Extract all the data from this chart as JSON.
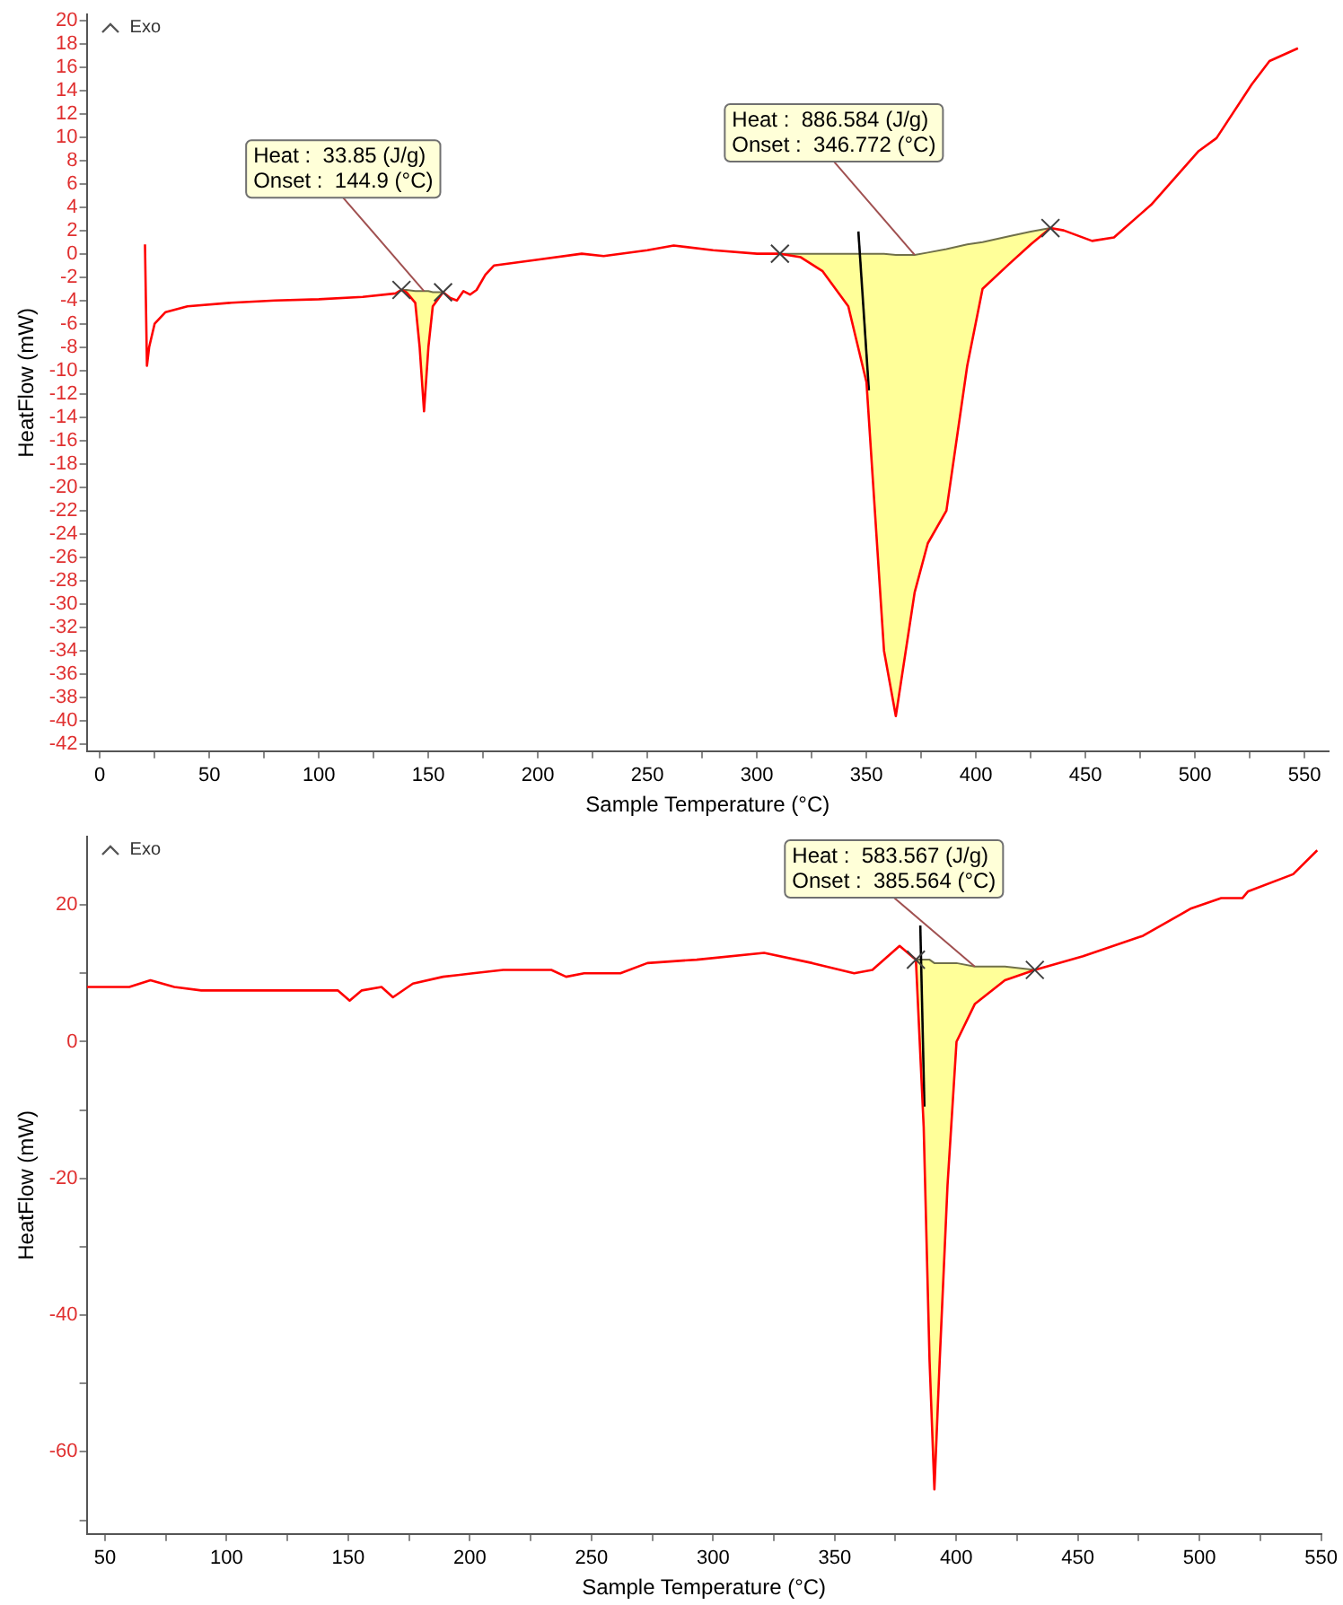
{
  "chart_data": [
    {
      "type": "line",
      "xlabel": "Sample Temperature (°C)",
      "ylabel": "HeatFlow (mW)",
      "xlim": [
        -6,
        561
      ],
      "ylim": [
        -42.6,
        20.5
      ],
      "xticks": [
        0,
        {
          "value": 25,
          "label": null
        },
        50,
        {
          "value": 75,
          "label": null
        },
        100,
        {
          "value": 125,
          "label": null
        },
        150,
        {
          "value": 175,
          "label": null
        },
        200,
        {
          "value": 225,
          "label": null
        },
        250,
        {
          "value": 275,
          "label": null
        },
        300,
        {
          "value": 325,
          "label": null
        },
        350,
        {
          "value": 375,
          "label": null
        },
        400,
        {
          "value": 425,
          "label": null
        },
        450,
        {
          "value": 475,
          "label": null
        },
        500,
        {
          "value": 525,
          "label": null
        },
        550
      ],
      "yticks": [
        -42,
        -40,
        -38,
        -36,
        -34,
        -32,
        -30,
        -28,
        -26,
        -24,
        -22,
        -20,
        -18,
        -16,
        -14,
        -12,
        -10,
        -8,
        -6,
        -4,
        -2,
        0,
        2,
        4,
        6,
        8,
        10,
        12,
        14,
        16,
        18,
        20
      ],
      "series": [
        {
          "type": "line",
          "color": "#70704a",
          "x": [
            137.7,
            140,
            144,
            146,
            148,
            150,
            152,
            156.7
          ],
          "values": [
            -3.1,
            -3.1,
            -3.2,
            -3.2,
            -3.2,
            -3.2,
            -3.3,
            -3.3
          ],
          "upper": [
            -3.1,
            -3.1,
            -3.2,
            -3.2,
            -3.2,
            -3.2,
            -3.3,
            -3.3
          ],
          "lower": [
            -3.1,
            -3.3,
            -4.2,
            -8,
            -13.5,
            -8,
            -4.5,
            -3.3
          ]
        },
        {
          "type": "line",
          "color": "#70704a",
          "x": [
            310.5,
            320,
            330,
            341.7,
            350,
            358,
            363.4,
            372,
            378,
            386.5,
            396,
            403,
            415,
            425,
            434
          ],
          "values": [
            0,
            0,
            0,
            0,
            0,
            0,
            -0.1,
            -0.1,
            0.1,
            0.4,
            0.8,
            1,
            1.5,
            1.9,
            2.2
          ],
          "upper": [
            0,
            0,
            0,
            0,
            0,
            0,
            -0.1,
            -0.1,
            0.1,
            0.4,
            0.8,
            1,
            1.5,
            1.9,
            2.2
          ],
          "lower": [
            0,
            -0.3,
            -1.5,
            -4.5,
            -11,
            -34,
            -39.6,
            -29,
            -24.8,
            -22,
            -9.6,
            -3,
            -0.9,
            0.8,
            2.2
          ]
        },
        {
          "color": "#ff0000",
          "marker": "none",
          "x": [
            20.6,
            21.5,
            22.5,
            25,
            30,
            40,
            60,
            80,
            100,
            120,
            135,
            137.7,
            140,
            144,
            146,
            148,
            150,
            152,
            156.7,
            160,
            163,
            166,
            169,
            172,
            176,
            180,
            200,
            220,
            230,
            250,
            262,
            280,
            300,
            310.5,
            320,
            330,
            341.7,
            350,
            358,
            363.4,
            372,
            378,
            386.5,
            396,
            403,
            415,
            425,
            434,
            440,
            453,
            463,
            480,
            501.7,
            509.8,
            525.9,
            534,
            547
          ],
          "values": [
            0.8,
            -9.6,
            -8,
            -6,
            -5,
            -4.5,
            -4.2,
            -4,
            -3.9,
            -3.7,
            -3.4,
            -3.1,
            -3.3,
            -4.2,
            -8,
            -13.5,
            -8,
            -4.5,
            -3.3,
            -3.8,
            -4,
            -3.2,
            -3.5,
            -3.1,
            -1.8,
            -1,
            -0.5,
            0,
            -0.2,
            0.3,
            0.7,
            0.3,
            0,
            0,
            -0.3,
            -1.5,
            -4.5,
            -11,
            -34,
            -39.6,
            -29,
            -24.8,
            -22,
            -9.6,
            -3,
            -0.9,
            0.8,
            2.2,
            2,
            1.1,
            1.4,
            4.2,
            8.8,
            9.9,
            14.5,
            16.5,
            17.6
          ]
        },
        {
          "type": "line",
          "color": "#000000",
          "marker": "none",
          "x": [
            346.3,
            351.1
          ],
          "values": [
            1.9,
            -11.7
          ]
        },
        {
          "type": "scatter",
          "color": "#404040",
          "marker": "cross",
          "x": [
            137.7,
            156.7,
            310.5,
            434
          ],
          "values": [
            -3.1,
            -3.3,
            0,
            2.2
          ]
        }
      ],
      "annotations": [
        "Exo",
        {
          "text": "Heat :  33.85 (J/g)\nOnset :  144.9 (°C)",
          "x": 148,
          "y": -3.2
        },
        {
          "text": "Heat :  886.584 (J/g)\nOnset :  346.772 (°C)",
          "x": 372,
          "y": -0.1
        }
      ]
    },
    {
      "type": "line",
      "xlabel": "Sample Temperature (°C)",
      "ylabel": "HeatFlow (mW)",
      "xlim": [
        42.5,
        550
      ],
      "ylim": [
        -72,
        30
      ],
      "xticks": [
        50,
        {
          "value": 75,
          "label": null
        },
        100,
        {
          "value": 125,
          "label": null
        },
        150,
        {
          "value": 175,
          "label": null
        },
        200,
        {
          "value": 225,
          "label": null
        },
        250,
        {
          "value": 275,
          "label": null
        },
        300,
        {
          "value": 325,
          "label": null
        },
        350,
        {
          "value": 375,
          "label": null
        },
        400,
        {
          "value": 425,
          "label": null
        },
        450,
        {
          "value": 475,
          "label": null
        },
        500,
        {
          "value": 525,
          "label": null
        },
        550
      ],
      "yticks": [
        {
          "value": -70,
          "label": null
        },
        -60,
        {
          "value": -50,
          "label": null
        },
        -40,
        {
          "value": -30,
          "label": null
        },
        -20,
        {
          "value": -10,
          "label": null
        },
        0,
        {
          "value": 10,
          "label": null
        },
        20
      ],
      "series": [
        {
          "type": "line",
          "color": "#70704a",
          "x": [
            383.4,
            386.6,
            389,
            391,
            393.2,
            396.4,
            400.1,
            407.6,
            420,
            432.3
          ],
          "values": [
            12,
            12,
            12,
            11.5,
            11.5,
            11.5,
            11.5,
            11,
            11,
            10.5
          ],
          "upper": [
            12,
            12,
            12,
            11.5,
            11.5,
            11.5,
            11.5,
            11,
            11,
            10.5
          ],
          "lower": [
            12,
            -12.5,
            -46.5,
            -65.5,
            -46.5,
            -21,
            0,
            5.5,
            9,
            10.5
          ]
        },
        {
          "color": "#ff0000",
          "marker": "none",
          "x": [
            42.6,
            60,
            68.7,
            78.5,
            89.6,
            139.5,
            145.7,
            150.6,
            155.6,
            163.7,
            168.4,
            176.6,
            189,
            201.3,
            213.7,
            233.5,
            239.6,
            247,
            261.9,
            273,
            293.3,
            321,
            340.8,
            358,
            365.5,
            376.7,
            383.4,
            386.6,
            389,
            391,
            393.2,
            396.4,
            400.1,
            407.6,
            420,
            432.3,
            452.1,
            476.8,
            496.6,
            508.9,
            517.6,
            520,
            538.5,
            548.4
          ],
          "values": [
            8,
            8,
            9,
            8,
            7.5,
            7.5,
            7.5,
            6,
            7.5,
            8,
            6.5,
            8.5,
            9.5,
            10,
            10.5,
            10.5,
            9.5,
            10,
            10,
            11.5,
            12,
            13,
            11.5,
            10,
            10.5,
            14,
            12,
            -12.5,
            -46.5,
            -65.5,
            -46.5,
            -21,
            0,
            5.5,
            9,
            10.5,
            12.5,
            15.5,
            19.5,
            21,
            21,
            22,
            24.5,
            28
          ]
        },
        {
          "type": "line",
          "color": "#000000",
          "marker": "none",
          "x": [
            385.2,
            386.9
          ],
          "values": [
            17,
            -9.5
          ]
        },
        {
          "type": "scatter",
          "color": "#404040",
          "marker": "cross",
          "x": [
            383.4,
            432.3
          ],
          "values": [
            12,
            10.5
          ]
        }
      ],
      "annotations": [
        "Exo",
        {
          "text": "Heat :  583.567 (J/g)\nOnset :  385.564 (°C)",
          "x": 407.6,
          "y": 11
        }
      ]
    }
  ]
}
